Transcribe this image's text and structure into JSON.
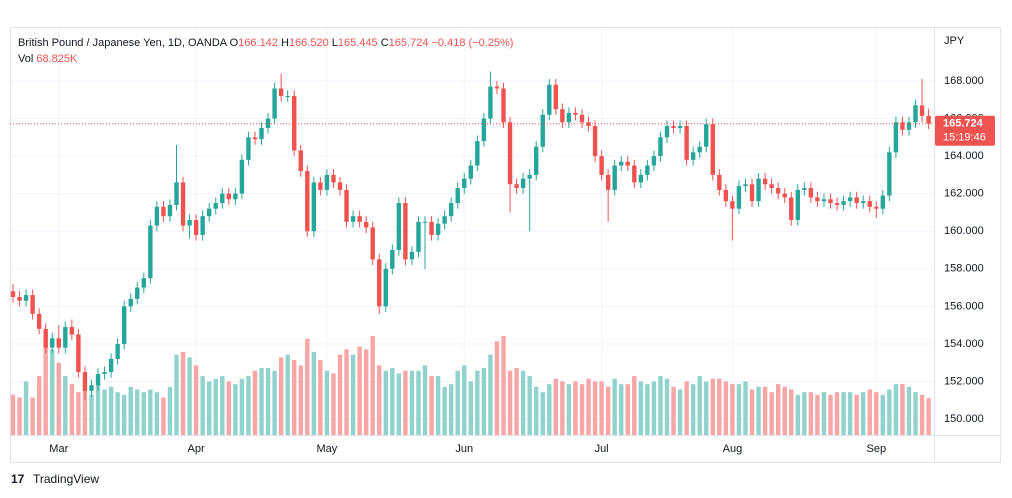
{
  "chart_data": {
    "type": "candlestick",
    "title": "British Pound / Japanese Yen, 1D, OANDA",
    "header": {
      "open_label": "O",
      "open": "166.142",
      "high_label": "H",
      "high": "166.520",
      "low_label": "L",
      "low": "165.445",
      "close_label": "C",
      "close": "165.724",
      "change": "−0.418 (−0.25%)"
    },
    "volume_label": "Vol",
    "volume_value": "68.825K",
    "axis_label": "JPY",
    "last_price_label": "165.724",
    "countdown": "15:19:46",
    "watermark": "TradingView",
    "open": [
      156.8,
      156.5,
      156.3,
      156.6,
      155.6,
      154.8,
      153.8,
      154.3,
      153.8,
      154.9,
      154.5,
      152.5,
      151.5,
      151.8,
      152.4,
      152.5,
      153.2,
      154,
      156,
      156.4,
      157,
      157.5,
      160.3,
      161.3,
      160.8,
      161.4,
      162.6,
      160.3,
      160.6,
      159.8,
      160.8,
      161.2,
      161.5,
      162,
      161.7,
      162,
      163.8,
      165,
      164.9,
      165.5,
      166,
      167.6,
      167.2,
      167.2,
      164.3,
      163.2,
      160,
      162.6,
      162.2,
      163,
      162.6,
      162.2,
      160.5,
      160.8,
      160.5,
      160.2,
      158.5,
      156,
      158,
      159,
      161.5,
      158.5,
      158.9,
      160.5,
      160.5,
      159.8,
      160.4,
      160.8,
      161.5,
      162.3,
      162.8,
      163.5,
      164.8,
      166,
      167.7,
      167.6,
      165.8,
      162.5,
      162.3,
      162.8,
      163,
      164.5,
      166.2,
      167.8,
      166.5,
      165.8,
      166.3,
      166.2,
      165.8,
      165.6,
      164,
      163,
      162.2,
      163.5,
      163.7,
      163.5,
      162.6,
      163,
      163.5,
      164,
      165,
      165.6,
      165.5,
      165.6,
      163.8,
      164.2,
      164.5,
      165.7,
      163,
      162.2,
      161.6,
      161.2,
      162.4,
      162.5,
      161.6,
      162.8,
      162.5,
      162.3,
      162,
      161.8,
      160.6,
      162.2,
      162.3,
      161.8,
      161.6,
      161.7,
      161.5,
      161.4,
      161.6,
      161.8,
      161.5,
      161.6,
      161.3,
      161.2,
      161.9,
      164.2,
      165.8,
      165.4,
      165.8,
      166.7,
      166.142
    ],
    "high": [
      157.2,
      156.8,
      156.9,
      156.9,
      155.9,
      155.1,
      154.6,
      155.0,
      155.2,
      155.3,
      154.8,
      152.8,
      152.1,
      152.7,
      152.8,
      153.5,
      154.3,
      156.3,
      156.7,
      157.3,
      157.8,
      160.6,
      161.6,
      161.6,
      161.7,
      164.6,
      162.9,
      160.9,
      160.9,
      161.1,
      161.5,
      161.8,
      162.3,
      162.3,
      162.3,
      164.1,
      165.3,
      165.3,
      165.8,
      166.3,
      167.9,
      168.4,
      167.5,
      167.5,
      164.6,
      163.5,
      162.9,
      162.9,
      163.3,
      163.3,
      162.9,
      162.5,
      161.1,
      161.1,
      160.8,
      160.5,
      158.8,
      158.3,
      159.3,
      161.8,
      161.8,
      159.2,
      160.8,
      160.8,
      160.8,
      160.7,
      161.1,
      161.8,
      162.6,
      163.1,
      163.8,
      165.1,
      166.3,
      168.5,
      168.0,
      167.9,
      166.1,
      162.8,
      163.1,
      163.3,
      164.8,
      166.5,
      168.1,
      168.1,
      166.8,
      166.6,
      166.6,
      166.5,
      166.1,
      165.9,
      164.3,
      163.3,
      163.8,
      164.0,
      164.0,
      163.8,
      163.3,
      163.8,
      164.3,
      165.3,
      165.9,
      165.9,
      165.9,
      165.9,
      164.5,
      164.8,
      166.0,
      166.0,
      163.3,
      162.5,
      161.9,
      162.7,
      162.8,
      162.8,
      163.1,
      163.1,
      162.8,
      162.6,
      162.3,
      162.1,
      162.5,
      162.6,
      162.6,
      162.1,
      162.0,
      162.0,
      161.8,
      161.9,
      162.1,
      162.1,
      161.9,
      161.9,
      161.6,
      162.2,
      164.5,
      166.1,
      166.1,
      166.1,
      167.0,
      168.1,
      166.52
    ],
    "low": [
      156.2,
      156.0,
      156.0,
      155.3,
      154.5,
      153.5,
      153.5,
      153.5,
      153.5,
      154.2,
      152.2,
      151.0,
      151.2,
      151.5,
      152.1,
      152.2,
      152.9,
      153.7,
      155.7,
      156.1,
      156.7,
      157.2,
      160.0,
      160.5,
      160.5,
      161.1,
      160.0,
      159.6,
      159.5,
      159.5,
      160.5,
      160.9,
      161.2,
      161.4,
      161.4,
      161.7,
      163.5,
      164.6,
      164.6,
      165.2,
      165.7,
      166.9,
      166.9,
      164.0,
      162.9,
      159.7,
      159.7,
      161.9,
      161.9,
      162.3,
      161.9,
      160.2,
      160.2,
      160.2,
      159.9,
      158.2,
      155.6,
      155.7,
      157.7,
      158.7,
      158.2,
      158.2,
      158.6,
      158.0,
      159.5,
      159.5,
      160.1,
      160.5,
      161.2,
      162.0,
      162.5,
      163.2,
      164.5,
      165.7,
      167.3,
      165.5,
      161.0,
      162.0,
      162.0,
      160.0,
      162.7,
      164.2,
      165.9,
      166.2,
      165.5,
      165.5,
      165.9,
      165.5,
      165.3,
      163.7,
      162.7,
      160.5,
      161.9,
      163.2,
      163.2,
      162.3,
      162.3,
      162.7,
      163.2,
      163.7,
      164.7,
      165.2,
      165.2,
      163.5,
      163.5,
      163.9,
      164.2,
      162.7,
      161.9,
      161.3,
      159.5,
      160.9,
      162.1,
      161.3,
      161.3,
      162.2,
      162.0,
      161.7,
      161.5,
      160.3,
      160.3,
      161.9,
      161.5,
      161.3,
      161.3,
      161.2,
      161.1,
      161.1,
      161.3,
      161.2,
      161.2,
      161.0,
      160.7,
      160.9,
      161.6,
      163.9,
      165.1,
      165.1,
      165.5,
      165.8,
      165.445
    ],
    "close": [
      156.5,
      156.3,
      156.6,
      155.6,
      154.8,
      153.8,
      154.3,
      153.8,
      154.9,
      154.5,
      152.5,
      151.5,
      151.8,
      152.4,
      152.5,
      153.2,
      154,
      156,
      156.4,
      157,
      157.5,
      160.3,
      161.3,
      160.8,
      161.4,
      162.6,
      160.3,
      160.6,
      159.8,
      160.8,
      161.2,
      161.5,
      162,
      161.7,
      162,
      163.8,
      165,
      164.9,
      165.5,
      166,
      167.6,
      167.2,
      167.2,
      164.3,
      163.2,
      160,
      162.6,
      162.2,
      163,
      162.6,
      162.2,
      160.5,
      160.8,
      160.5,
      160.2,
      158.5,
      156,
      158,
      159,
      161.5,
      158.5,
      158.9,
      160.5,
      160.5,
      159.8,
      160.4,
      160.8,
      161.5,
      162.3,
      162.8,
      163.5,
      164.8,
      166,
      167.7,
      167.6,
      165.8,
      162.5,
      162.3,
      162.8,
      163,
      164.5,
      166.2,
      167.8,
      166.5,
      165.8,
      166.3,
      166.2,
      165.8,
      165.6,
      164,
      163,
      162.2,
      163.5,
      163.7,
      163.5,
      162.6,
      163,
      163.5,
      164,
      165,
      165.6,
      165.5,
      165.6,
      163.8,
      164.2,
      164.5,
      165.7,
      163,
      162.2,
      161.6,
      161.2,
      162.4,
      162.5,
      161.6,
      162.8,
      162.5,
      162.3,
      162,
      161.8,
      160.6,
      162.2,
      162.3,
      161.8,
      161.6,
      161.7,
      161.5,
      161.4,
      161.6,
      161.8,
      161.5,
      161.6,
      161.3,
      161.2,
      161.9,
      164.2,
      165.8,
      165.4,
      165.8,
      166.7,
      166.142,
      165.724
    ],
    "volume": [
      75,
      70,
      100,
      70,
      110,
      170,
      160,
      135,
      110,
      95,
      80,
      85,
      75,
      95,
      85,
      90,
      80,
      75,
      90,
      85,
      80,
      85,
      80,
      70,
      90,
      150,
      155,
      145,
      130,
      110,
      100,
      105,
      110,
      100,
      95,
      105,
      110,
      120,
      125,
      125,
      120,
      145,
      150,
      140,
      130,
      180,
      155,
      140,
      120,
      115,
      150,
      160,
      150,
      165,
      160,
      185,
      130,
      120,
      125,
      115,
      120,
      120,
      120,
      130,
      110,
      110,
      90,
      95,
      120,
      130,
      100,
      120,
      125,
      150,
      175,
      185,
      120,
      125,
      120,
      110,
      90,
      80,
      95,
      105,
      100,
      95,
      100,
      95,
      105,
      100,
      100,
      90,
      105,
      95,
      95,
      110,
      100,
      95,
      100,
      110,
      105,
      90,
      85,
      100,
      95,
      110,
      100,
      105,
      105,
      100,
      95,
      95,
      100,
      85,
      90,
      90,
      80,
      95,
      90,
      85,
      75,
      80,
      80,
      75,
      80,
      75,
      80,
      80,
      80,
      75,
      80,
      85,
      80,
      75,
      85,
      95,
      95,
      90,
      80,
      75,
      68.825
    ],
    "up_color": "#26a69a",
    "down_color": "#ef5350",
    "volume_up_color": "#92d2cc",
    "volume_down_color": "#f5a6a5",
    "ylim": [
      149.15,
      170.82
    ],
    "yticks": [
      {
        "value": 150,
        "label": "150.000"
      },
      {
        "value": 152,
        "label": "152.000"
      },
      {
        "value": 154,
        "label": "154.000"
      },
      {
        "value": 156,
        "label": "156.000"
      },
      {
        "value": 158,
        "label": "158.000"
      },
      {
        "value": 160,
        "label": "160.000"
      },
      {
        "value": 162,
        "label": "162.000"
      },
      {
        "value": 164,
        "label": "164.000"
      },
      {
        "value": 166,
        "label": "166.000"
      },
      {
        "value": 168,
        "label": "168.000"
      }
    ],
    "volume_lim": [
      0,
      760
    ],
    "xticks": [
      {
        "value": 7,
        "label": "Mar"
      },
      {
        "value": 28,
        "label": "Apr"
      },
      {
        "value": 48,
        "label": "May"
      },
      {
        "value": 69,
        "label": "Jun"
      },
      {
        "value": 90,
        "label": "Jul"
      },
      {
        "value": 110,
        "label": "Aug"
      },
      {
        "value": 132,
        "label": "Sep"
      }
    ],
    "grid": true
  }
}
